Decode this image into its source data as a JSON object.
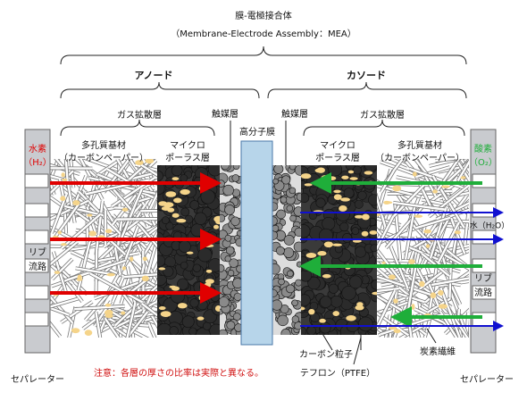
{
  "title": "膜-電極接合体",
  "subtitle": "（Membrane-Electrode Assembly：MEA）",
  "anode": "アノード",
  "cathode": "カソード",
  "membrane": "高分子膜",
  "left": {
    "gas_diffusion_layer": "ガス拡散層",
    "catalyst_layer": "触媒層",
    "porous_substrate": [
      "多孔質基材",
      "（カーボンペーパー）"
    ],
    "microporous_layer": [
      "マイクロ",
      "ポーラス層"
    ],
    "gas": [
      "水素",
      "（H₂）"
    ],
    "rib": "リブ",
    "channel": "流路",
    "separator": "セパレーター"
  },
  "right": {
    "gas_diffusion_layer": "ガス拡散層",
    "catalyst_layer": "触媒層",
    "porous_substrate": [
      "多孔質基材",
      "（カーボンペーパー）"
    ],
    "microporous_layer": [
      "マイクロ",
      "ポーラス層"
    ],
    "gas": [
      "酸素",
      "（O₂）"
    ],
    "water": "水（H₂O）",
    "rib": "リブ",
    "channel": "流路",
    "separator": "セパレーター"
  },
  "note": "注意：各層の厚さの比率は実際と異なる。",
  "callouts": {
    "carbon_particle": "カーボン粒子",
    "ptfe": "テフロン（PTFE）",
    "carbon_fiber": "炭素繊維"
  }
}
